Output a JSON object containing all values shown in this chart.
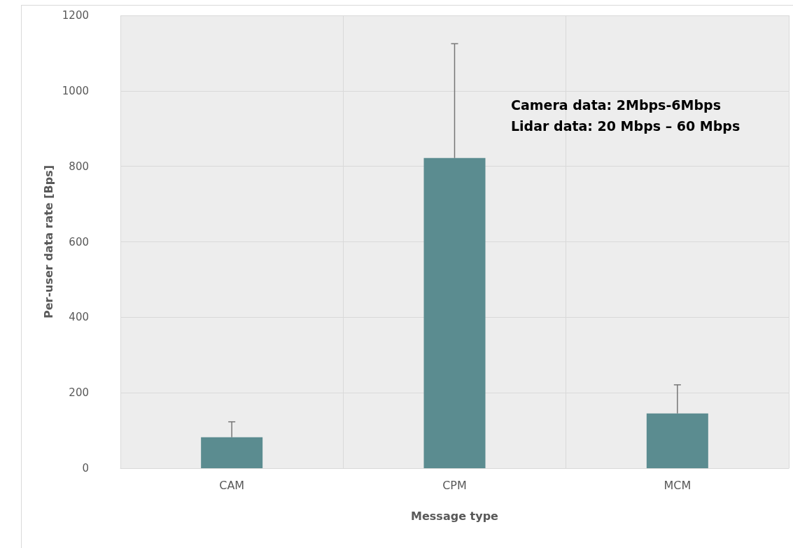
{
  "chart_data": {
    "type": "bar",
    "xlabel": "Message type",
    "ylabel": "Per-user data rate [Bps]",
    "categories": [
      "CAM",
      "CPM",
      "MCM"
    ],
    "values": [
      82,
      822,
      145
    ],
    "errors": [
      [
        82,
        123
      ],
      [
        822,
        1125
      ],
      [
        145,
        221
      ]
    ],
    "color": "#5b8c90",
    "ylim": [
      0,
      1200
    ],
    "yticks": [
      0,
      200,
      400,
      600,
      800,
      1000,
      1200
    ],
    "grid": true,
    "annotations": [
      "Camera data: 2Mbps-6Mbps",
      "Lidar data: 20 Mbps – 60 Mbps"
    ]
  }
}
